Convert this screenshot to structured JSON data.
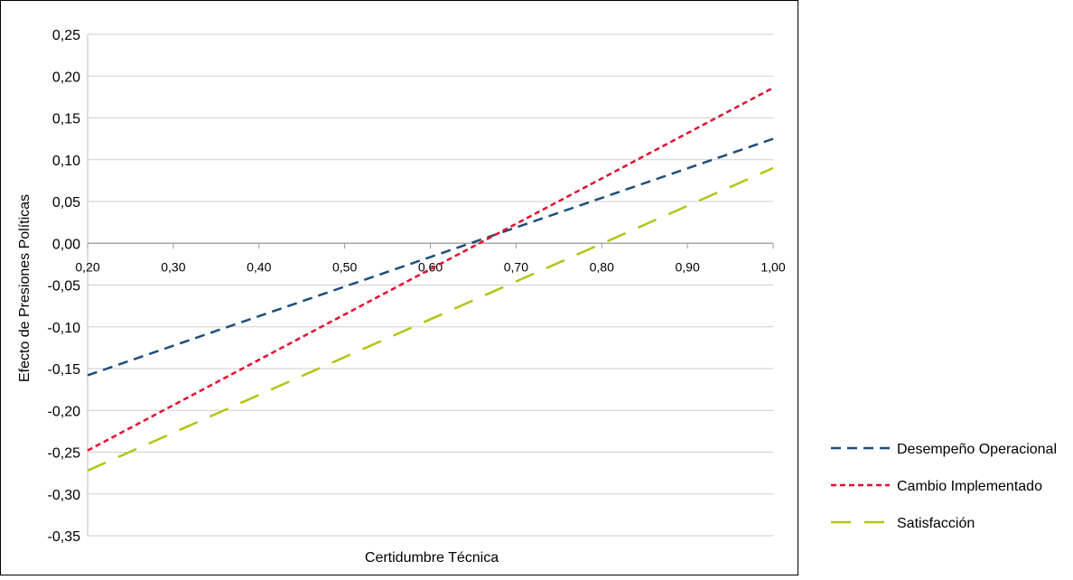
{
  "chart_data": {
    "type": "line",
    "title": "",
    "xlabel": "Certidumbre Técnica",
    "ylabel": "Efecto de Presiones Políticas",
    "xlim": [
      0.2,
      1.0
    ],
    "ylim": [
      -0.35,
      0.25
    ],
    "x_ticks": [
      "0,20",
      "0,30",
      "0,40",
      "0,50",
      "0,60",
      "0,70",
      "0,80",
      "0,90",
      "1,00"
    ],
    "y_ticks": [
      "0,25",
      "0,20",
      "0,15",
      "0,10",
      "0,05",
      "0,00",
      "-0,05",
      "-0,10",
      "-0,15",
      "-0,20",
      "-0,25",
      "-0,30",
      "-0,35"
    ],
    "grid": true,
    "legend_position": "right",
    "series": [
      {
        "name": "Desempeño Operacional",
        "color": "#1f4e79",
        "dash": "medium",
        "x": [
          0.2,
          1.0
        ],
        "y": [
          -0.158,
          0.125
        ]
      },
      {
        "name": "Cambio Implementado",
        "color": "#e0102f",
        "dash": "short",
        "x": [
          0.2,
          1.0
        ],
        "y": [
          -0.248,
          0.186
        ]
      },
      {
        "name": "Satisfacción",
        "color": "#b5c314",
        "dash": "long",
        "x": [
          0.2,
          1.0
        ],
        "y": [
          -0.272,
          0.09
        ]
      }
    ]
  }
}
